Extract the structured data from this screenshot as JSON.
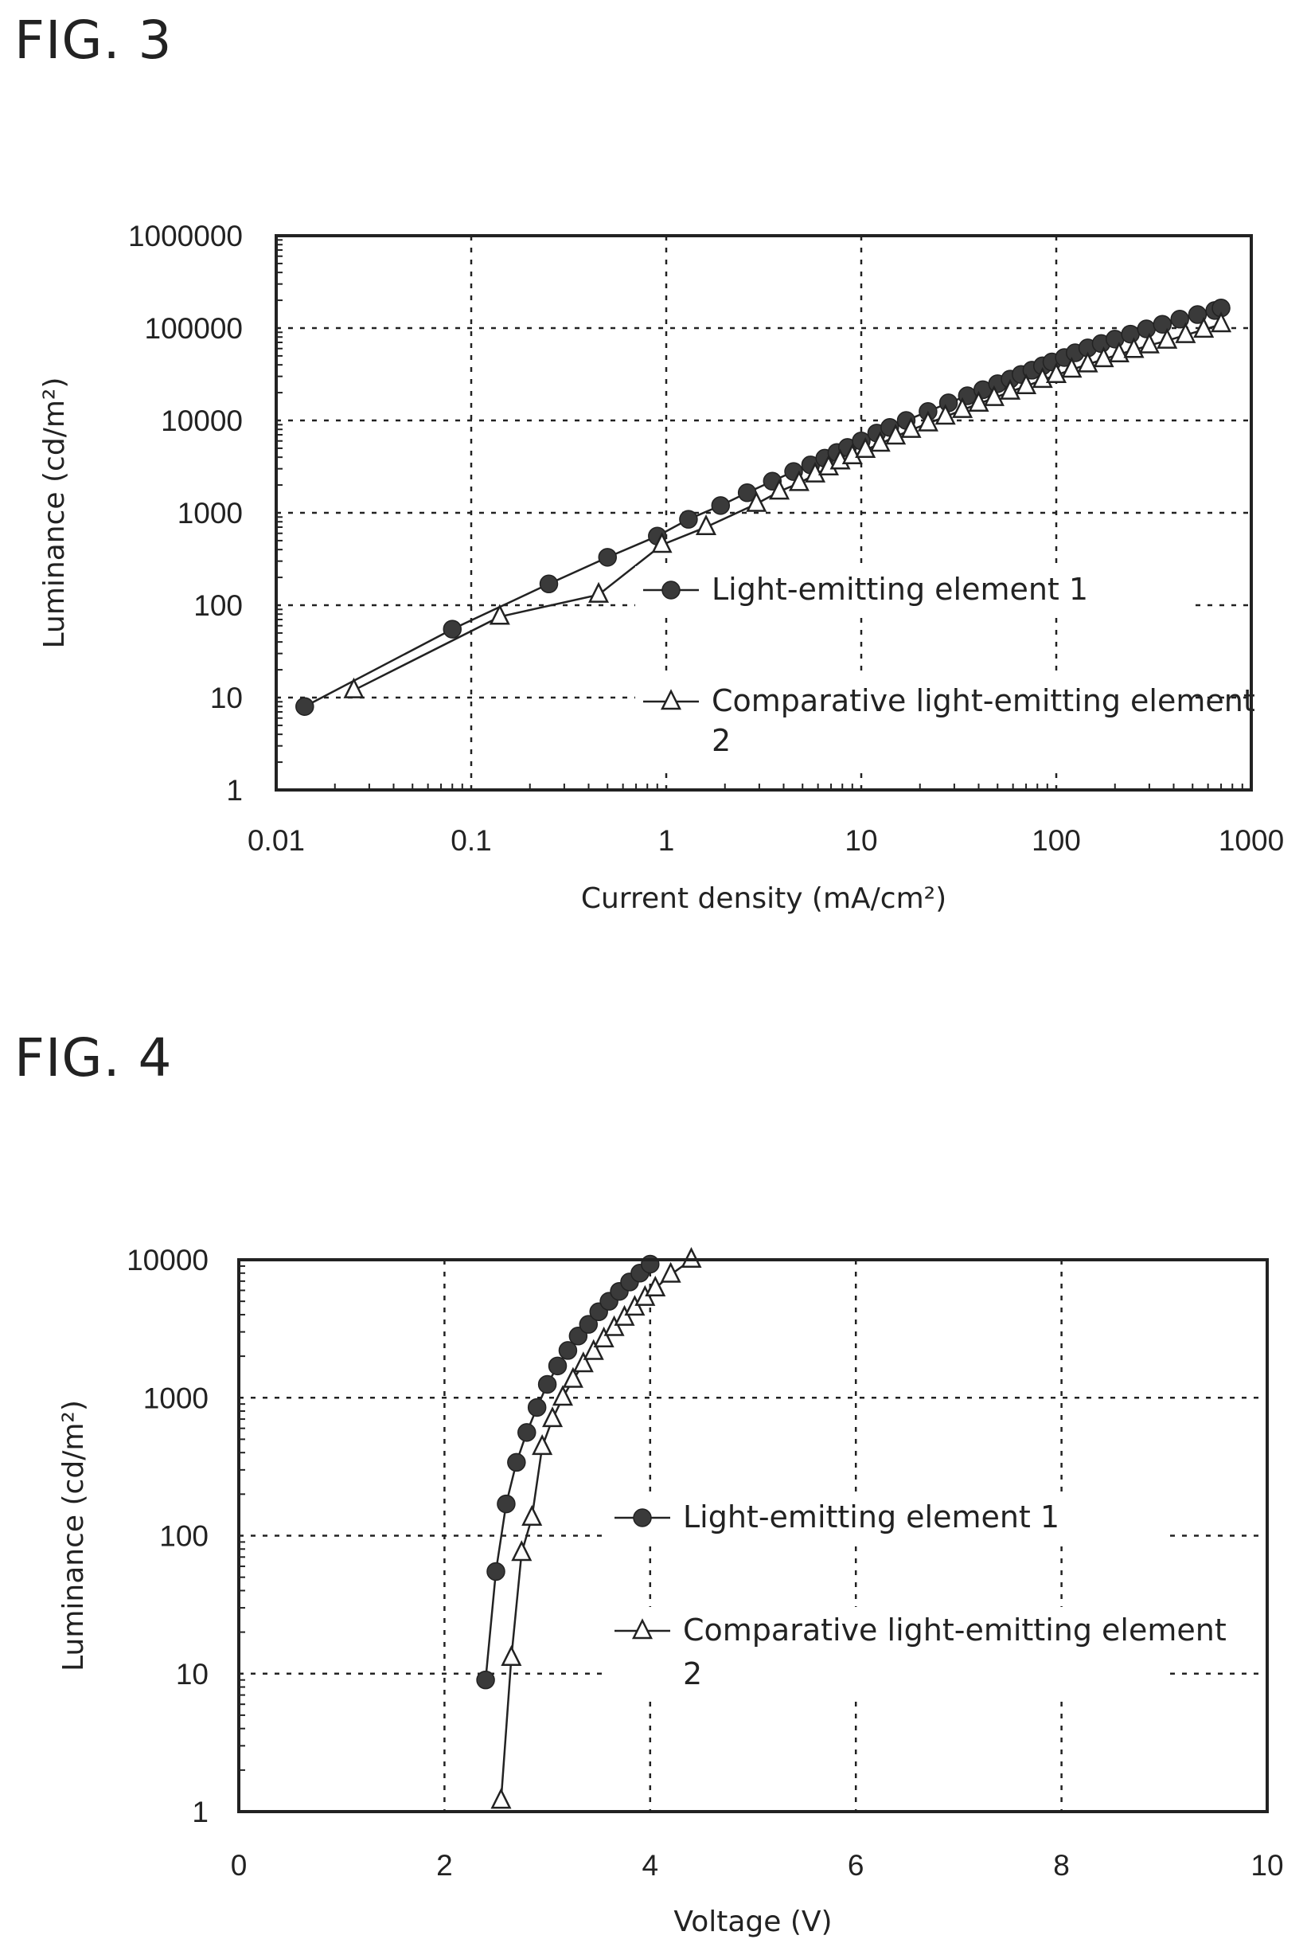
{
  "figures": {
    "fig3_title": "FIG. 3",
    "fig4_title": "FIG. 4"
  },
  "chart_data": [
    {
      "id": "fig3",
      "type": "line",
      "x_scale": "log",
      "y_scale": "log",
      "xlim": [
        0.01,
        1000
      ],
      "ylim": [
        1,
        1000000
      ],
      "xlabel": "Current density (mA/cm²)",
      "ylabel": "Luminance (cd/m²)",
      "x_ticks": [
        0.01,
        0.1,
        1,
        10,
        100,
        1000
      ],
      "x_tick_labels": [
        "0.01",
        "0.1",
        "1",
        "10",
        "100",
        "1000"
      ],
      "y_ticks": [
        1,
        10,
        100,
        1000,
        10000,
        100000,
        1000000
      ],
      "y_tick_labels": [
        "1",
        "10",
        "100",
        "1000",
        "10000",
        "100000",
        "1000000"
      ],
      "grid": true,
      "legend_placement": "right",
      "series": [
        {
          "name": "Light-emitting element 1",
          "marker": "filled-circle",
          "x": [
            0.014,
            0.08,
            0.25,
            0.5,
            0.9,
            1.3,
            1.9,
            2.6,
            3.5,
            4.5,
            5.5,
            6.5,
            7.5,
            8.5,
            10,
            12,
            14,
            17,
            22,
            28,
            35,
            42,
            50,
            58,
            66,
            75,
            85,
            95,
            110,
            125,
            145,
            170,
            200,
            240,
            290,
            350,
            430,
            530,
            650,
            700
          ],
          "y": [
            8,
            55,
            170,
            330,
            560,
            850,
            1200,
            1650,
            2200,
            2800,
            3300,
            3900,
            4500,
            5100,
            6000,
            7300,
            8400,
            10000,
            12500,
            15500,
            18500,
            21500,
            25000,
            28000,
            31500,
            35000,
            39000,
            43000,
            48000,
            54000,
            61000,
            68000,
            76000,
            86000,
            98000,
            110000,
            125000,
            140000,
            155000,
            165000
          ]
        },
        {
          "name": "Comparative light-emitting element 2",
          "marker": "open-triangle",
          "x": [
            0.025,
            0.14,
            0.45,
            0.95,
            1.6,
            2.9,
            3.8,
            4.8,
            5.8,
            6.8,
            7.8,
            9,
            10.5,
            12.5,
            15,
            18,
            22,
            27,
            33,
            40,
            48,
            58,
            70,
            85,
            100,
            120,
            145,
            175,
            210,
            250,
            300,
            370,
            460,
            570,
            700
          ],
          "y": [
            12,
            75,
            130,
            450,
            700,
            1250,
            1700,
            2100,
            2600,
            3100,
            3600,
            4100,
            4800,
            5600,
            6700,
            7900,
            9300,
            11000,
            13000,
            15200,
            17500,
            20500,
            23500,
            27500,
            31000,
            35500,
            40500,
            46000,
            52000,
            58000,
            65000,
            73000,
            84000,
            96000,
            110000
          ]
        }
      ]
    },
    {
      "id": "fig4",
      "type": "line",
      "x_scale": "linear",
      "y_scale": "log",
      "xlim": [
        0,
        10
      ],
      "ylim": [
        1,
        10000
      ],
      "xlabel": "Voltage (V)",
      "ylabel": "Luminance (cd/m²)",
      "x_ticks": [
        0,
        2,
        4,
        6,
        8,
        10
      ],
      "x_tick_labels": [
        "0",
        "2",
        "4",
        "6",
        "8",
        "10"
      ],
      "y_ticks": [
        1,
        10,
        100,
        1000,
        10000
      ],
      "y_tick_labels": [
        "1",
        "10",
        "100",
        "1000",
        "10000"
      ],
      "grid": true,
      "legend_placement": "right",
      "series": [
        {
          "name": "Light-emitting element 1",
          "marker": "filled-circle",
          "x": [
            2.4,
            2.5,
            2.6,
            2.7,
            2.8,
            2.9,
            3.0,
            3.1,
            3.2,
            3.3,
            3.4,
            3.5,
            3.6,
            3.7,
            3.8,
            3.9,
            4.0
          ],
          "y": [
            9,
            55,
            170,
            340,
            560,
            850,
            1250,
            1700,
            2200,
            2800,
            3400,
            4200,
            5000,
            5900,
            6900,
            8000,
            9300
          ]
        },
        {
          "name": "Comparative light-emitting element 2",
          "marker": "open-triangle",
          "x": [
            2.55,
            2.65,
            2.75,
            2.85,
            2.95,
            3.05,
            3.15,
            3.25,
            3.35,
            3.45,
            3.55,
            3.65,
            3.75,
            3.85,
            3.95,
            4.05,
            4.2,
            4.4
          ],
          "y": [
            1.2,
            13,
            75,
            135,
            440,
            700,
            1000,
            1350,
            1750,
            2150,
            2650,
            3200,
            3800,
            4500,
            5300,
            6200,
            7800,
            10000
          ]
        }
      ]
    }
  ]
}
